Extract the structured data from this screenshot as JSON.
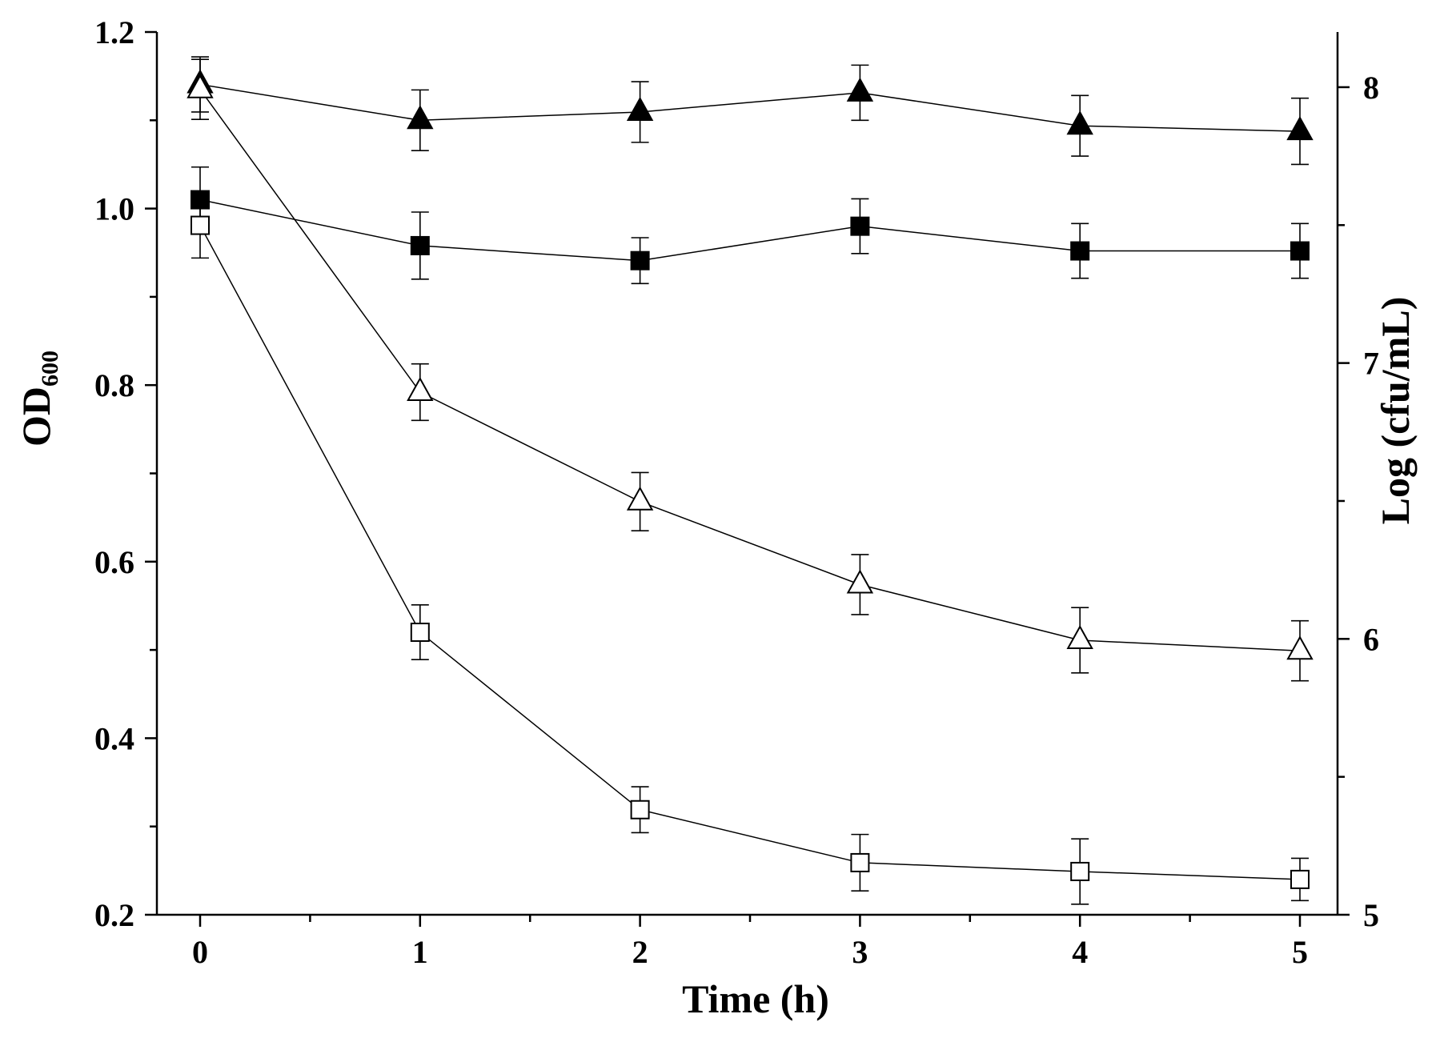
{
  "chart_data": {
    "type": "line",
    "x": [
      0,
      1,
      2,
      3,
      4,
      5
    ],
    "xlabel": "Time (h)",
    "ylabel_left": "OD",
    "ylabel_left_sub": "600",
    "ylabel_right": "Log (cfu/mL)",
    "xlim": [
      -0.2,
      5.1
    ],
    "ylim_left": [
      0.2,
      1.2
    ],
    "ylim_right": [
      5,
      8.2
    ],
    "x_ticks": [
      "0",
      "1",
      "2",
      "3",
      "4",
      "5"
    ],
    "y_left_ticks": [
      "0.2",
      "0.4",
      "0.6",
      "0.8",
      "1.0",
      "1.2"
    ],
    "y_right_ticks": [
      "5",
      "6",
      "7",
      "8"
    ],
    "grid": false,
    "series": [
      {
        "marker": "filled-triangle",
        "axis": "right",
        "values": [
          8.01,
          7.88,
          7.91,
          7.98,
          7.86,
          7.84
        ],
        "errors": [
          0.1,
          0.11,
          0.11,
          0.1,
          0.11,
          0.12
        ]
      },
      {
        "marker": "filled-square",
        "axis": "left",
        "values": [
          1.01,
          0.958,
          0.941,
          0.98,
          0.952,
          0.952
        ],
        "errors": [
          0.037,
          0.038,
          0.026,
          0.031,
          0.031,
          0.031
        ]
      },
      {
        "marker": "open-triangle",
        "axis": "left",
        "values": [
          1.135,
          0.792,
          0.668,
          0.574,
          0.511,
          0.499
        ],
        "errors": [
          0.034,
          0.032,
          0.033,
          0.034,
          0.037,
          0.034
        ]
      },
      {
        "marker": "open-square",
        "axis": "left",
        "values": [
          0.981,
          0.52,
          0.319,
          0.259,
          0.249,
          0.24
        ],
        "errors": [
          0.037,
          0.031,
          0.026,
          0.032,
          0.037,
          0.024
        ]
      }
    ]
  }
}
